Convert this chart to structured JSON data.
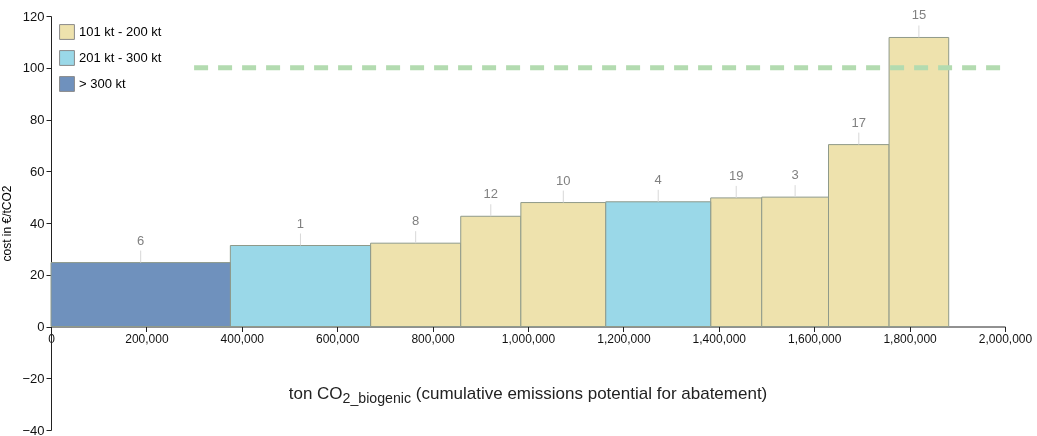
{
  "chart_data": {
    "type": "histogram",
    "ylabel": "cost in €/tCO2",
    "xlabel": "ton CO$_{2_biogenic}$ (cumulative emissions potential for abatement)",
    "bins": [
      0,
      376000,
      670000,
      859000,
      985000,
      1163000,
      1383000,
      1490000,
      1630000,
      1757000,
      1882000
    ],
    "series": [
      {
        "name": "101 kt - 200 kt",
        "color": "#eee2ad",
        "values": [
          null,
          null,
          32.2,
          42.6,
          47.9,
          null,
          49.7,
          50.0,
          70.3,
          111.7
        ]
      },
      {
        "name": "201 kt - 300 kt",
        "color": "#9ad8e8",
        "values": [
          null,
          31.3,
          null,
          null,
          null,
          48.2,
          null,
          null,
          null,
          null
        ]
      },
      {
        "name": "> 300 kt",
        "color": "#6f91bd",
        "values": [
          24.7,
          null,
          null,
          null,
          null,
          null,
          null,
          null,
          null,
          null
        ]
      }
    ],
    "xlim": [
      0,
      2000000
    ],
    "xticks": [
      0,
      {
        "value": 200000,
        "label": "200,000"
      },
      {
        "value": 400000,
        "label": "400,000"
      },
      {
        "value": 600000,
        "label": "600,000"
      },
      {
        "value": 800000,
        "label": "800,000"
      },
      {
        "value": 1000000,
        "label": "1,000,000"
      },
      {
        "value": 1200000,
        "label": "1,200,000"
      },
      {
        "value": 1400000,
        "label": "1,400,000"
      },
      {
        "value": 1600000,
        "label": "1,600,000"
      },
      {
        "value": 1800000,
        "label": "1,800,000"
      },
      {
        "value": 2000000,
        "label": "2,000,000"
      }
    ],
    "ylim": [
      -40,
      120
    ],
    "yticks": [
      -40,
      -20,
      0,
      20,
      40,
      60,
      80,
      100,
      120
    ],
    "ref_lines": [
      {
        "axis": "y",
        "value": 100,
        "color": "#b3dbb0",
        "line_style": "dashed"
      }
    ],
    "annotations": [
      {
        "text": "6",
        "x": 188000,
        "y": 24.7
      },
      {
        "text": "1",
        "x": 523000,
        "y": 31.3
      },
      {
        "text": "8",
        "x": 764500,
        "y": 32.2
      },
      {
        "text": "12",
        "x": 922000,
        "y": 42.6
      },
      {
        "text": "10",
        "x": 1074000,
        "y": 47.9
      },
      {
        "text": "4",
        "x": 1273000,
        "y": 48.2
      },
      {
        "text": "19",
        "x": 1436500,
        "y": 49.7
      },
      {
        "text": "3",
        "x": 1560000,
        "y": 50.0
      },
      {
        "text": "17",
        "x": 1693500,
        "y": 70.3
      },
      {
        "text": "15",
        "x": 1819500,
        "y": 111.7
      }
    ],
    "legend": "top left",
    "grid": false
  }
}
